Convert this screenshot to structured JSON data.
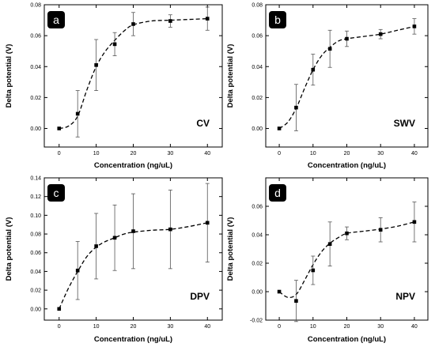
{
  "chart_data": [
    {
      "type": "line",
      "panel_label": "a",
      "method_label": "CV",
      "xlabel": "Concentration (ng/uL)",
      "ylabel": "Delta potential (V)",
      "xlim": [
        -4,
        44
      ],
      "ylim": [
        -0.012,
        0.08
      ],
      "xticks": [
        0,
        10,
        20,
        30,
        40
      ],
      "yticks": [
        0.0,
        0.02,
        0.04,
        0.06,
        0.08
      ],
      "ytick_labels": [
        "0.00",
        "0.02",
        "0.04",
        "0.06",
        "0.08"
      ],
      "x": [
        0,
        5,
        10,
        15,
        20,
        30,
        40
      ],
      "y": [
        0.0,
        0.0095,
        0.041,
        0.0545,
        0.0675,
        0.0695,
        0.071
      ],
      "error": [
        0.0,
        0.015,
        0.0165,
        0.0075,
        0.0075,
        0.004,
        0.0075
      ],
      "fit": [
        [
          0,
          0.0
        ],
        [
          2.5,
          0.0015
        ],
        [
          5,
          0.008
        ],
        [
          7.5,
          0.025
        ],
        [
          10,
          0.04
        ],
        [
          12.5,
          0.05
        ],
        [
          15,
          0.057
        ],
        [
          17.5,
          0.063
        ],
        [
          20,
          0.067
        ],
        [
          25,
          0.0695
        ],
        [
          30,
          0.07
        ],
        [
          35,
          0.0705
        ],
        [
          40,
          0.071
        ]
      ],
      "grid": false
    },
    {
      "type": "line",
      "panel_label": "b",
      "method_label": "SWV",
      "xlabel": "Concentration (ng/uL)",
      "ylabel": "Delta potential (V)",
      "xlim": [
        -4,
        44
      ],
      "ylim": [
        -0.012,
        0.08
      ],
      "xticks": [
        0,
        10,
        20,
        30,
        40
      ],
      "yticks": [
        0.0,
        0.02,
        0.04,
        0.06,
        0.08
      ],
      "ytick_labels": [
        "0.00",
        "0.02",
        "0.04",
        "0.06",
        "0.08"
      ],
      "x": [
        0,
        5,
        10,
        15,
        20,
        30,
        40
      ],
      "y": [
        0.0,
        0.0135,
        0.038,
        0.0515,
        0.058,
        0.061,
        0.066
      ],
      "error": [
        0.0,
        0.015,
        0.01,
        0.012,
        0.005,
        0.003,
        0.005
      ],
      "fit": [
        [
          0,
          0.0
        ],
        [
          2.5,
          0.004
        ],
        [
          5,
          0.013
        ],
        [
          7.5,
          0.026
        ],
        [
          10,
          0.038
        ],
        [
          12.5,
          0.047
        ],
        [
          15,
          0.0525
        ],
        [
          17.5,
          0.0565
        ],
        [
          20,
          0.058
        ],
        [
          25,
          0.0595
        ],
        [
          30,
          0.061
        ],
        [
          35,
          0.0635
        ],
        [
          40,
          0.066
        ]
      ],
      "grid": false
    },
    {
      "type": "line",
      "panel_label": "c",
      "method_label": "DPV",
      "xlabel": "Concentration (ng/uL)",
      "ylabel": "Delta potential (V)",
      "xlim": [
        -4,
        44
      ],
      "ylim": [
        -0.012,
        0.14
      ],
      "xticks": [
        0,
        10,
        20,
        30,
        40
      ],
      "yticks": [
        0.0,
        0.02,
        0.04,
        0.06,
        0.08,
        0.1,
        0.12,
        0.14
      ],
      "ytick_labels": [
        "0.00",
        "0.02",
        "0.04",
        "0.06",
        "0.08",
        "0.10",
        "0.12",
        "0.14"
      ],
      "x": [
        0,
        5,
        10,
        15,
        20,
        30,
        40
      ],
      "y": [
        0.0,
        0.041,
        0.067,
        0.076,
        0.083,
        0.085,
        0.092
      ],
      "error": [
        0.0,
        0.031,
        0.035,
        0.035,
        0.04,
        0.042,
        0.042
      ],
      "fit": [
        [
          0,
          0.0
        ],
        [
          2.5,
          0.022
        ],
        [
          5,
          0.04
        ],
        [
          7.5,
          0.056
        ],
        [
          10,
          0.066
        ],
        [
          12.5,
          0.072
        ],
        [
          15,
          0.076
        ],
        [
          17.5,
          0.08
        ],
        [
          20,
          0.082
        ],
        [
          25,
          0.084
        ],
        [
          30,
          0.085
        ],
        [
          35,
          0.088
        ],
        [
          40,
          0.092
        ]
      ],
      "grid": false
    },
    {
      "type": "line",
      "panel_label": "d",
      "method_label": "NPV",
      "xlabel": "Concentration (ng/uL)",
      "ylabel": "Delta potential (V)",
      "xlim": [
        -4,
        44
      ],
      "ylim": [
        -0.02,
        0.08
      ],
      "xticks": [
        0,
        10,
        20,
        30,
        40
      ],
      "yticks": [
        -0.02,
        0.0,
        0.02,
        0.04,
        0.06
      ],
      "ytick_labels": [
        "-0.02",
        "0.00",
        "0.02",
        "0.04",
        "0.06"
      ],
      "x": [
        0,
        5,
        10,
        15,
        20,
        30,
        40
      ],
      "y": [
        0.0,
        -0.0065,
        0.015,
        0.0335,
        0.041,
        0.0435,
        0.049
      ],
      "error": [
        0.0,
        0.0145,
        0.01,
        0.0155,
        0.0045,
        0.0085,
        0.014
      ],
      "fit": [
        [
          0,
          0.0
        ],
        [
          2.5,
          -0.004
        ],
        [
          5,
          -0.002
        ],
        [
          7.5,
          0.008
        ],
        [
          10,
          0.019
        ],
        [
          12.5,
          0.028
        ],
        [
          15,
          0.034
        ],
        [
          17.5,
          0.038
        ],
        [
          20,
          0.041
        ],
        [
          25,
          0.0425
        ],
        [
          30,
          0.044
        ],
        [
          35,
          0.046
        ],
        [
          40,
          0.049
        ]
      ],
      "grid": false
    }
  ]
}
